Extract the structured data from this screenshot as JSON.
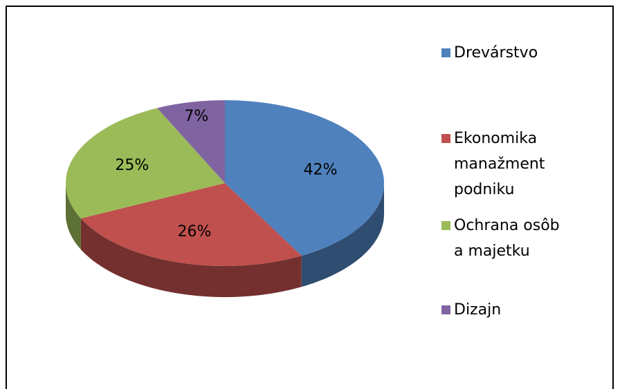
{
  "chart_data": {
    "type": "pie",
    "categories": [
      "Drevárstvo",
      "Ekonomika manažment podniku",
      "Ochrana osôb a majetku",
      "Dizajn"
    ],
    "values": [
      42,
      26,
      25,
      7
    ],
    "value_labels": [
      "42%",
      "26%",
      "25%",
      "7%"
    ],
    "colors": [
      "#4f81bd",
      "#c0504d",
      "#9bbb59",
      "#8064a2"
    ],
    "legend": "right"
  }
}
